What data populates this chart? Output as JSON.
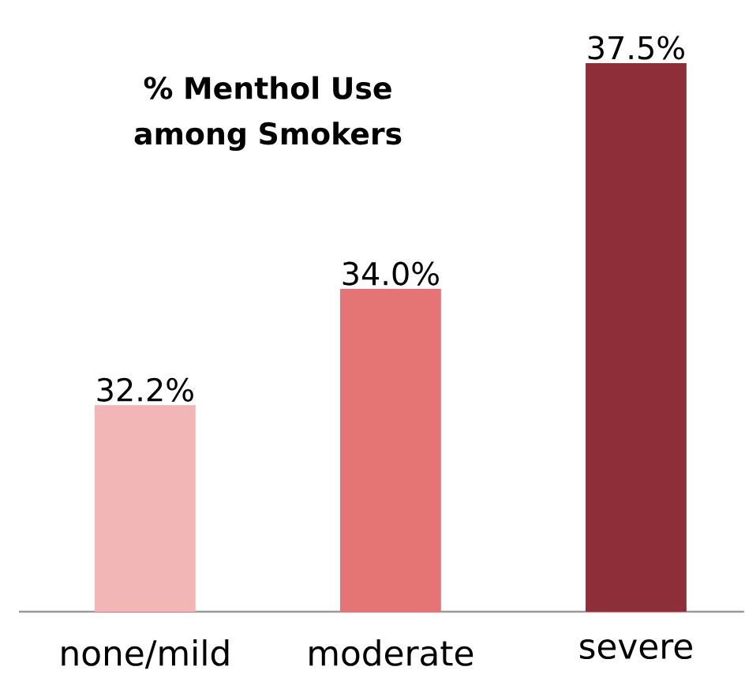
{
  "chart_data": {
    "type": "bar",
    "title": "% Menthol Use among Smokers",
    "categories": [
      "none/mild",
      "moderate",
      "severe"
    ],
    "values": [
      32.2,
      34.0,
      37.5
    ],
    "value_labels": [
      "32.2%",
      "34.0%",
      "37.5%"
    ],
    "colors": [
      "#f2b6b6",
      "#e57474",
      "#8e2e39"
    ],
    "ylim": [
      29,
      37.5
    ],
    "tick_labels": "x"
  }
}
